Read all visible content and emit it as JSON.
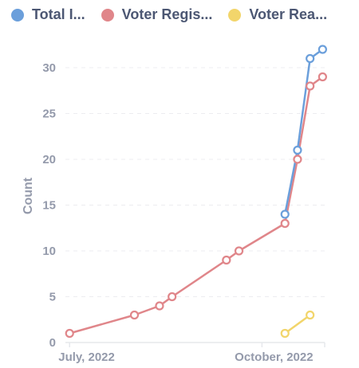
{
  "chart_data": {
    "type": "line",
    "title": "",
    "xlabel": "",
    "ylabel": "Count",
    "ylim": [
      0,
      32
    ],
    "yticks": [
      0,
      5,
      10,
      15,
      20,
      25,
      30
    ],
    "x_range": [
      "2022-06-29",
      "2022-10-31"
    ],
    "xticks": [
      {
        "date": "2022-07-01",
        "label": "July, 2022"
      },
      {
        "date": "2022-10-01",
        "label": "October, 2022"
      }
    ],
    "grid": "horizontal-dashed",
    "legend_position": "top",
    "series": [
      {
        "name": "Total I...",
        "color": "#6b9fdb",
        "points": [
          {
            "x": "2022-10-12",
            "y": 14
          },
          {
            "x": "2022-10-18",
            "y": 21
          },
          {
            "x": "2022-10-24",
            "y": 31
          },
          {
            "x": "2022-10-30",
            "y": 32
          }
        ]
      },
      {
        "name": "Voter Regis...",
        "color": "#e0868a",
        "points": [
          {
            "x": "2022-07-01",
            "y": 1
          },
          {
            "x": "2022-08-01",
            "y": 3
          },
          {
            "x": "2022-08-13",
            "y": 4
          },
          {
            "x": "2022-08-19",
            "y": 5
          },
          {
            "x": "2022-09-14",
            "y": 9
          },
          {
            "x": "2022-09-20",
            "y": 10
          },
          {
            "x": "2022-10-12",
            "y": 13
          },
          {
            "x": "2022-10-18",
            "y": 20
          },
          {
            "x": "2022-10-24",
            "y": 28
          },
          {
            "x": "2022-10-30",
            "y": 29
          }
        ]
      },
      {
        "name": "Voter Rea...",
        "color": "#f2d56b",
        "points": [
          {
            "x": "2022-10-12",
            "y": 1
          },
          {
            "x": "2022-10-24",
            "y": 3
          }
        ]
      }
    ]
  }
}
